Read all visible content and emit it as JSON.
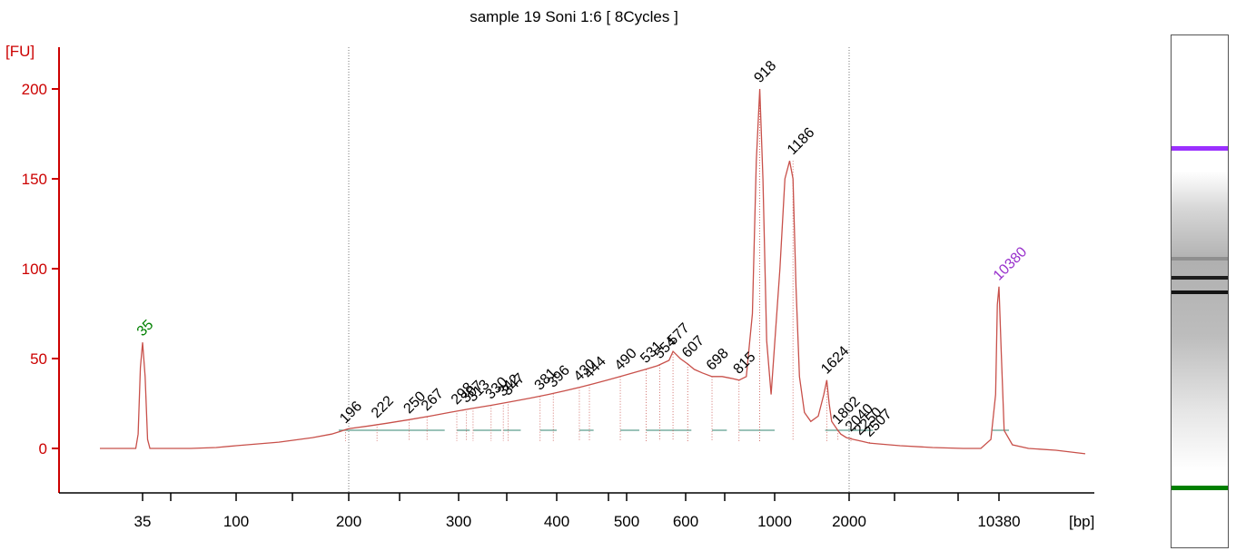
{
  "chart_data": {
    "type": "line",
    "title": "sample 19 Soni 1:6  [ 8Cycles ]",
    "ylabel": "[FU]",
    "xlabel": "[bp]",
    "x_ticks": [
      "35",
      "100",
      "200",
      "300",
      "400",
      "500",
      "600",
      "1000",
      "2000",
      "10380"
    ],
    "y_ticks": [
      "0",
      "50",
      "100",
      "150",
      "200"
    ],
    "ylim": [
      -22,
      225
    ],
    "x_scale": "nonlinear-ladder",
    "grid": false,
    "vertical_reference_lines_bp": [
      200,
      2000
    ],
    "colors": {
      "axis": "#cc0000",
      "trace": "#c8504a",
      "baseline": "#5e9e8e",
      "lower_marker": "#008000",
      "upper_marker": "#9932cc",
      "peak_label": "#000000"
    },
    "series": [
      {
        "x": [
          20,
          28,
          32,
          33,
          34,
          35,
          36,
          37,
          38,
          45,
          60,
          80,
          100,
          130,
          160,
          180,
          190,
          200,
          215,
          230,
          250,
          270,
          290,
          310,
          330,
          350,
          370,
          390,
          410,
          430,
          450,
          470,
          490,
          510,
          530,
          550,
          570,
          577,
          590,
          607,
          630,
          660,
          698,
          740,
          780,
          815,
          850,
          880,
          900,
          918,
          935,
          955,
          980,
          1050,
          1100,
          1150,
          1186,
          1220,
          1260,
          1320,
          1400,
          1500,
          1580,
          1624,
          1660,
          1700,
          1760,
          1802,
          1850,
          1950,
          2100,
          2300,
          2500,
          2800,
          3500,
          5000,
          7000,
          8500,
          9500,
          10000,
          10200,
          10380,
          10550,
          10800,
          11500,
          13000,
          16000,
          20000
        ],
        "y": [
          0,
          0,
          0,
          8,
          45,
          59,
          40,
          5,
          0,
          0,
          0,
          0.5,
          1.5,
          3.5,
          6,
          8,
          9.5,
          11,
          12.5,
          14,
          16,
          18,
          20,
          22,
          24,
          26,
          28,
          30,
          32,
          34,
          36,
          38,
          40,
          42,
          44,
          46,
          49,
          54,
          50,
          47,
          44,
          42,
          40,
          40,
          39,
          38,
          40,
          75,
          160,
          200,
          150,
          60,
          30,
          100,
          150,
          160,
          150,
          90,
          40,
          20,
          15,
          18,
          30,
          38,
          25,
          15,
          12,
          10,
          8,
          6,
          5,
          4,
          3,
          2.5,
          1.5,
          0.5,
          0,
          0,
          5,
          30,
          80,
          90,
          55,
          10,
          2,
          0,
          -1,
          -3
        ]
      }
    ],
    "peak_labels": [
      {
        "text": "35",
        "bp": 35,
        "fu": 59
      },
      {
        "text": "196",
        "bp": 196,
        "fu": 10.5
      },
      {
        "text": "222",
        "bp": 222,
        "fu": 13.5
      },
      {
        "text": "250",
        "bp": 250,
        "fu": 16
      },
      {
        "text": "267",
        "bp": 267,
        "fu": 17.5
      },
      {
        "text": "298",
        "bp": 298,
        "fu": 21
      },
      {
        "text": "307",
        "bp": 307,
        "fu": 22
      },
      {
        "text": "313",
        "bp": 313,
        "fu": 22.5
      },
      {
        "text": "330",
        "bp": 330,
        "fu": 24
      },
      {
        "text": "342",
        "bp": 342,
        "fu": 25.5
      },
      {
        "text": "347",
        "bp": 347,
        "fu": 26
      },
      {
        "text": "381",
        "bp": 381,
        "fu": 29
      },
      {
        "text": "396",
        "bp": 396,
        "fu": 30.5
      },
      {
        "text": "430",
        "bp": 430,
        "fu": 34
      },
      {
        "text": "444",
        "bp": 444,
        "fu": 35.5
      },
      {
        "text": "490",
        "bp": 490,
        "fu": 40
      },
      {
        "text": "531",
        "bp": 531,
        "fu": 44
      },
      {
        "text": "554",
        "bp": 554,
        "fu": 46.5
      },
      {
        "text": "577",
        "bp": 577,
        "fu": 54
      },
      {
        "text": "607",
        "bp": 607,
        "fu": 47
      },
      {
        "text": "698",
        "bp": 698,
        "fu": 40
      },
      {
        "text": "815",
        "bp": 815,
        "fu": 38
      },
      {
        "text": "918",
        "bp": 918,
        "fu": 200
      },
      {
        "text": "1186",
        "bp": 1186,
        "fu": 160
      },
      {
        "text": "1624",
        "bp": 1624,
        "fu": 38
      },
      {
        "text": "1802",
        "bp": 1802,
        "fu": 10
      },
      {
        "text": "2040",
        "bp": 2040,
        "fu": 6
      },
      {
        "text": "2250",
        "bp": 2250,
        "fu": 4
      },
      {
        "text": "2507",
        "bp": 2507,
        "fu": 3
      },
      {
        "text": "10380",
        "bp": 10380,
        "fu": 90
      }
    ]
  },
  "gel_lane": {
    "upper_marker_color": "#9b30ff",
    "lower_marker_color": "#008000",
    "bands": [
      {
        "bp": 10380,
        "intensity": 1.0
      },
      {
        "bp": 1186,
        "intensity": 0.9
      },
      {
        "bp": 918,
        "intensity": 0.95
      },
      {
        "bp": 1624,
        "intensity": 0.3
      },
      {
        "bp": 35,
        "intensity": 1.0
      }
    ]
  }
}
